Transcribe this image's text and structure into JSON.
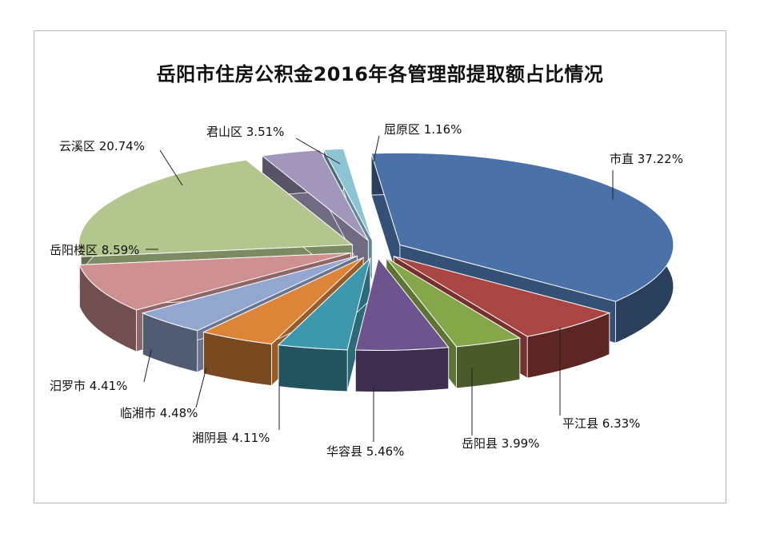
{
  "chart_data": {
    "type": "pie",
    "title": "岳阳市住房公积金2016年各管理部提取额占比情况",
    "style": "3d-exploded",
    "series": [
      {
        "name": "",
        "values": [
          37.22,
          6.33,
          3.99,
          5.46,
          4.11,
          4.48,
          4.41,
          8.59,
          20.74,
          3.51,
          1.16
        ]
      }
    ],
    "slices": [
      {
        "label": "市直",
        "value": 37.22,
        "text": "市直 37.22%",
        "color": "#4a72a8"
      },
      {
        "label": "平江县",
        "value": 6.33,
        "text": "平江县 6.33%",
        "color": "#a94543"
      },
      {
        "label": "岳阳县",
        "value": 3.99,
        "text": "岳阳县 3.99%",
        "color": "#86a64a"
      },
      {
        "label": "华容县",
        "value": 5.46,
        "text": "华容县 5.46%",
        "color": "#6e548f"
      },
      {
        "label": "湘阴县",
        "value": 4.11,
        "text": "湘阴县 4.11%",
        "color": "#3e98ad"
      },
      {
        "label": "临湘市",
        "value": 4.48,
        "text": "临湘市 4.48%",
        "color": "#dc8438"
      },
      {
        "label": "汨罗市",
        "value": 4.41,
        "text": "汨罗市 4.41%",
        "color": "#93a6d0"
      },
      {
        "label": "岳阳楼区",
        "value": 8.59,
        "text": "岳阳楼区 8.59%",
        "color": "#ce9090"
      },
      {
        "label": "云溪区",
        "value": 20.74,
        "text": "云溪区 20.74%",
        "color": "#b3c68e"
      },
      {
        "label": "君山区",
        "value": 3.51,
        "text": "君山区 3.51%",
        "color": "#a297bb"
      },
      {
        "label": "屈原区",
        "value": 1.16,
        "text": "屈原区 1.16%",
        "color": "#8dc4d4"
      }
    ],
    "legend": "none",
    "data_labels": "outside-with-leaders"
  }
}
